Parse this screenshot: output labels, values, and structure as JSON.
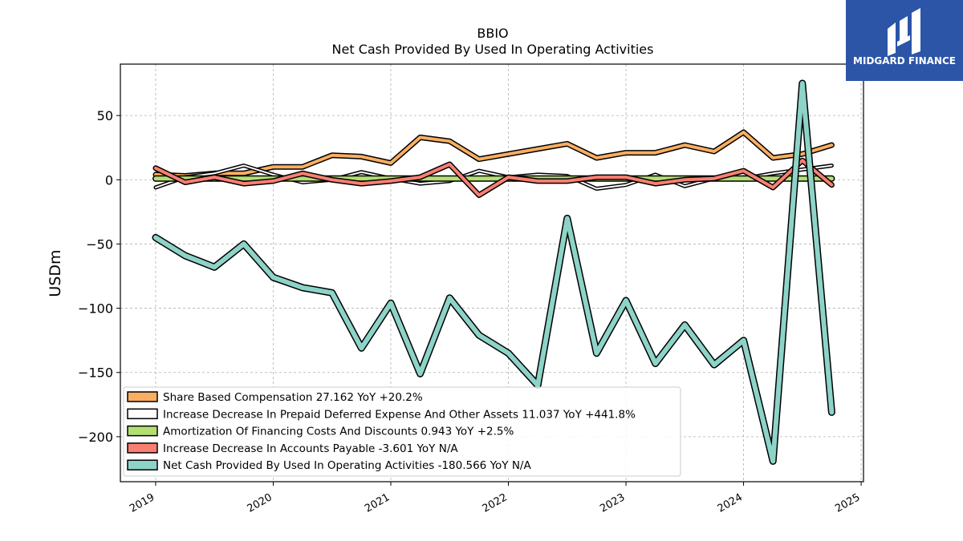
{
  "logo": {
    "text": "MIDGARD FINANCE",
    "bg_color": "#2c55a7"
  },
  "chart_data": {
    "type": "line",
    "title": "BBIO",
    "subtitle": "Net Cash Provided By Used In Operating Activities",
    "ylabel": "USDm",
    "xlabel": "",
    "ylim": [
      -235,
      90
    ],
    "xlim": [
      2018.7,
      2025.02
    ],
    "yticks": [
      50,
      0,
      -50,
      -100,
      -150,
      -200
    ],
    "ytick_labels": [
      "50",
      "0",
      "−50",
      "−100",
      "−150",
      "−200"
    ],
    "xticks": [
      2019,
      2020,
      2021,
      2022,
      2023,
      2024,
      2025
    ],
    "xtick_labels": [
      "2019",
      "2020",
      "2021",
      "2022",
      "2023",
      "2024",
      "2025"
    ],
    "grid": true,
    "legend_position": "lower-left",
    "x": [
      2019.0,
      2019.25,
      2019.5,
      2019.75,
      2020.0,
      2020.25,
      2020.5,
      2020.75,
      2021.0,
      2021.25,
      2021.5,
      2021.75,
      2022.0,
      2022.25,
      2022.5,
      2022.75,
      2023.0,
      2023.25,
      2023.5,
      2023.75,
      2024.0,
      2024.25,
      2024.5,
      2024.75
    ],
    "series": [
      {
        "name": "Share Based Compensation",
        "legend_label": "Share Based Compensation  27.162 YoY +20.2%",
        "color": "#f9ae62",
        "width": 4,
        "values": [
          4,
          3,
          5,
          5,
          10,
          10,
          19,
          18,
          13,
          33,
          30,
          16,
          20,
          24,
          28,
          17,
          21,
          21,
          27,
          22,
          37,
          17,
          20,
          27
        ]
      },
      {
        "name": "Increase Decrease In Prepaid Deferred Expense And Other Assets",
        "legend_label": "Increase Decrease In Prepaid Deferred Expense And Other Assets  11.037 YoY +441.8%",
        "color": "#ffffff",
        "width": 2,
        "values": [
          -6,
          2,
          5,
          11,
          4,
          -2,
          0,
          6,
          1,
          -3,
          -1,
          7,
          2,
          4,
          3,
          -7,
          -4,
          4,
          -5,
          1,
          1,
          5,
          8,
          11
        ]
      },
      {
        "name": "Amortization Of Financing Costs And Discounts",
        "legend_label": "Amortization Of Financing Costs And Discounts  0.943 YoY +2.5%",
        "color": "#b3df72",
        "width": 5,
        "values": [
          0.9,
          0.9,
          0.9,
          0.9,
          0.9,
          0.9,
          0.9,
          0.9,
          0.9,
          0.9,
          0.9,
          0.9,
          0.9,
          0.9,
          0.9,
          0.9,
          0.9,
          0.9,
          0.9,
          0.9,
          0.9,
          0.9,
          0.9,
          0.9
        ]
      },
      {
        "name": "Increase Decrease In Accounts Payable",
        "legend_label": "Increase Decrease In Accounts Payable  -3.601 YoY N/A",
        "color": "#f97f72",
        "width": 4,
        "values": [
          9,
          -2,
          2,
          -3,
          -1,
          5,
          0,
          -3,
          -1,
          2,
          12,
          -12,
          2,
          -1,
          -1,
          2,
          2,
          -3,
          0,
          1,
          7,
          -6,
          15,
          -4
        ]
      },
      {
        "name": "Net Cash Provided By Used In Operating Activities",
        "legend_label": "Net Cash Provided By Used In Operating Activities  -180.566 YoY N/A",
        "color": "#8dd3c7",
        "width": 6,
        "values": [
          -45,
          -59,
          -68,
          -50,
          -76,
          -84,
          -88,
          -131,
          -96,
          -151,
          -92,
          -121,
          -135,
          -160,
          -30,
          -135,
          -94,
          -143,
          -113,
          -144,
          -125,
          -219,
          75,
          -181
        ]
      }
    ]
  }
}
